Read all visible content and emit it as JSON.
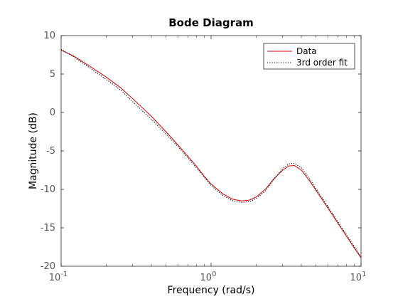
{
  "chart_data": {
    "type": "line",
    "title": "Bode Diagram",
    "xlabel": "Frequency  (rad/s)",
    "ylabel": "Magnitude (dB)",
    "xscale": "log",
    "xlim": [
      0.1,
      10
    ],
    "ylim": [
      -20,
      10
    ],
    "xticks": [
      0.1,
      1,
      10
    ],
    "xtick_labels": [
      {
        "base": "10",
        "exp": "-1"
      },
      {
        "base": "10",
        "exp": "0"
      },
      {
        "base": "10",
        "exp": "1"
      }
    ],
    "yticks": [
      10,
      5,
      0,
      -5,
      -10,
      -15,
      -20
    ],
    "ytick_labels": [
      "10",
      "5",
      "0",
      "-5",
      "-10",
      "-15",
      "-20"
    ],
    "grid": false,
    "legend_position": "top-right",
    "series": [
      {
        "name": "Data",
        "color": "#cc0000",
        "style": "solid",
        "points": [
          [
            0.1,
            8.1
          ],
          [
            0.12,
            7.4
          ],
          [
            0.15,
            6.2
          ],
          [
            0.2,
            4.6
          ],
          [
            0.25,
            3.2
          ],
          [
            0.3,
            1.8
          ],
          [
            0.4,
            -0.5
          ],
          [
            0.5,
            -2.5
          ],
          [
            0.6,
            -4.2
          ],
          [
            0.7,
            -5.7
          ],
          [
            0.8,
            -7.0
          ],
          [
            0.9,
            -8.3
          ],
          [
            1.0,
            -9.3
          ],
          [
            1.2,
            -10.6
          ],
          [
            1.4,
            -11.3
          ],
          [
            1.6,
            -11.5
          ],
          [
            1.8,
            -11.4
          ],
          [
            2.0,
            -11.0
          ],
          [
            2.3,
            -10.0
          ],
          [
            2.6,
            -8.7
          ],
          [
            3.0,
            -7.5
          ],
          [
            3.3,
            -6.95
          ],
          [
            3.6,
            -6.9
          ],
          [
            4.0,
            -7.5
          ],
          [
            4.5,
            -8.8
          ],
          [
            5.0,
            -10.1
          ],
          [
            6.0,
            -12.4
          ],
          [
            7.0,
            -14.4
          ],
          [
            8.0,
            -16.1
          ],
          [
            9.0,
            -17.6
          ],
          [
            10.0,
            -18.9
          ]
        ]
      },
      {
        "name": "3rd order fit",
        "color": "#000000",
        "style": "dotted",
        "points": [
          [
            0.1,
            8.2
          ],
          [
            0.12,
            7.3
          ],
          [
            0.15,
            6.0
          ],
          [
            0.2,
            4.3
          ],
          [
            0.25,
            2.9
          ],
          [
            0.3,
            1.4
          ],
          [
            0.4,
            -0.9
          ],
          [
            0.5,
            -2.8
          ],
          [
            0.6,
            -4.4
          ],
          [
            0.7,
            -5.9
          ],
          [
            0.8,
            -7.2
          ],
          [
            0.9,
            -8.4
          ],
          [
            1.0,
            -9.5
          ],
          [
            1.2,
            -10.8
          ],
          [
            1.4,
            -11.5
          ],
          [
            1.6,
            -11.7
          ],
          [
            1.8,
            -11.6
          ],
          [
            2.0,
            -11.2
          ],
          [
            2.3,
            -10.2
          ],
          [
            2.6,
            -8.8
          ],
          [
            3.0,
            -7.3
          ],
          [
            3.3,
            -6.7
          ],
          [
            3.6,
            -6.6
          ],
          [
            4.0,
            -7.2
          ],
          [
            4.5,
            -8.5
          ],
          [
            5.0,
            -9.9
          ],
          [
            6.0,
            -12.2
          ],
          [
            7.0,
            -14.2
          ],
          [
            8.0,
            -15.9
          ],
          [
            9.0,
            -17.4
          ],
          [
            10.0,
            -18.8
          ]
        ]
      }
    ]
  }
}
